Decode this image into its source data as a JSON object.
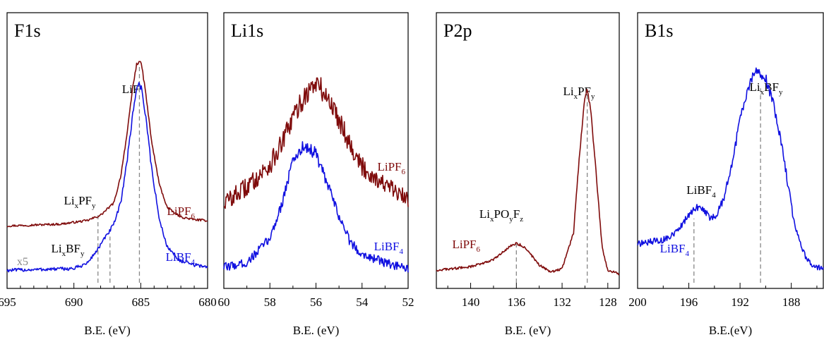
{
  "colors": {
    "lipf6": "#7f0b0b",
    "libf4": "#1010e0",
    "ref": "#888888",
    "axis": "#000000"
  },
  "chart_data": [
    {
      "type": "line",
      "title": "F1s",
      "xlabel": "B.E. (eV)",
      "xlim": [
        695,
        680
      ],
      "xticks": [
        "695",
        "690",
        "685",
        "680"
      ],
      "reversed_x": true,
      "scale_note": "x5",
      "series": [
        {
          "name": "LiPF6",
          "name_main": "LiPF",
          "name_sub": "6",
          "color": "#7f0b0b",
          "noise": 0.15,
          "x": [
            695,
            691,
            689,
            688,
            687,
            686.5,
            686,
            685.6,
            685.3,
            685.1,
            684.9,
            684.6,
            684.2,
            683.6,
            683,
            682,
            681,
            680
          ],
          "y": [
            0.32,
            0.33,
            0.35,
            0.38,
            0.45,
            0.6,
            0.85,
            1.1,
            1.23,
            1.25,
            1.21,
            1.05,
            0.8,
            0.55,
            0.42,
            0.37,
            0.355,
            0.35
          ]
        },
        {
          "name": "LiBF4",
          "name_main": "LiBF",
          "name_sub": "4",
          "color": "#1010e0",
          "noise": 0.3,
          "x": [
            695,
            690,
            689,
            688.3,
            687.6,
            687,
            686.5,
            686,
            685.6,
            685.3,
            685.1,
            684.9,
            684.6,
            684.2,
            683.6,
            683,
            682,
            681,
            680
          ],
          "y": [
            0.07,
            0.08,
            0.11,
            0.18,
            0.26,
            0.33,
            0.45,
            0.7,
            0.95,
            1.1,
            1.12,
            1.08,
            0.92,
            0.65,
            0.35,
            0.2,
            0.12,
            0.1,
            0.09
          ]
        }
      ],
      "annotations": [
        {
          "main": "LiF",
          "x": 685.1,
          "from": 0.0,
          "to": 1.22
        },
        {
          "main": "Li",
          "sub1": "x",
          "mid": "PF",
          "sub2": "y",
          "x": 688.2,
          "from": 0.0,
          "to": 0.38
        },
        {
          "main": "Li",
          "sub1": "x",
          "mid": "BF",
          "sub2": "y",
          "x": 687.3,
          "from": 0.0,
          "to": 0.26
        }
      ]
    },
    {
      "type": "line",
      "title": "Li1s",
      "xlabel": "B.E. (eV)",
      "xlim": [
        60,
        52
      ],
      "xticks": [
        "60",
        "58",
        "56",
        "54",
        "52"
      ],
      "reversed_x": true,
      "series": [
        {
          "name": "LiPF6",
          "name_main": "LiPF",
          "name_sub": "6",
          "color": "#7f0b0b",
          "noise": 1.0,
          "x": [
            60,
            59,
            58,
            57.5,
            57,
            56.5,
            56,
            55.5,
            55,
            54.5,
            54,
            53,
            52
          ],
          "y": [
            0.36,
            0.43,
            0.53,
            0.62,
            0.74,
            0.84,
            0.9,
            0.83,
            0.74,
            0.62,
            0.52,
            0.44,
            0.37
          ]
        },
        {
          "name": "LiBF4",
          "name_main": "LiBF",
          "name_sub": "4",
          "color": "#1010e0",
          "noise": 0.6,
          "x": [
            60,
            59,
            58,
            57.5,
            57,
            56.5,
            56,
            55.5,
            55,
            54.5,
            54,
            53,
            52
          ],
          "y": [
            0.07,
            0.09,
            0.2,
            0.35,
            0.55,
            0.62,
            0.58,
            0.44,
            0.3,
            0.18,
            0.13,
            0.09,
            0.06
          ]
        }
      ],
      "annotations": []
    },
    {
      "type": "line",
      "title": "P2p",
      "xlabel": "B.E. (eV)",
      "xlim": [
        143,
        127
      ],
      "xticks": [
        "140",
        "136",
        "132",
        "128"
      ],
      "reversed_x": true,
      "series": [
        {
          "name": "LiPF6",
          "name_main": "LiPF",
          "name_sub": "6",
          "color": "#7f0b0b",
          "noise": 0.2,
          "x": [
            143,
            140,
            138,
            137,
            136.5,
            136,
            135.5,
            135,
            134,
            133,
            132,
            131,
            130.5,
            130,
            129.8,
            129.5,
            129,
            128.5,
            128,
            127
          ],
          "y": [
            0.07,
            0.09,
            0.13,
            0.18,
            0.21,
            0.22,
            0.21,
            0.18,
            0.1,
            0.06,
            0.08,
            0.28,
            0.7,
            1.05,
            1.08,
            0.98,
            0.6,
            0.2,
            0.07,
            0.05
          ]
        }
      ],
      "annotations": [
        {
          "main": "Li",
          "sub1": "x",
          "mid": "PF",
          "sub2": "y",
          "x": 129.8,
          "from": 0.0,
          "to": 1.06
        },
        {
          "main": "Li",
          "sub1": "x",
          "mid": "PO",
          "sub2": "y",
          "end": "F",
          "sub3": "z",
          "x": 136,
          "from": 0.0,
          "to": 0.22
        }
      ]
    },
    {
      "type": "line",
      "title": "B1s",
      "xlabel": "B.E.(eV)",
      "xlim": [
        200,
        185.5
      ],
      "xticks": [
        "200",
        "196",
        "192",
        "188"
      ],
      "reversed_x": true,
      "series": [
        {
          "name": "LiBF4",
          "name_main": "LiBF",
          "name_sub": "4",
          "color": "#1010e0",
          "noise": 0.45,
          "x": [
            200,
            198,
            197,
            196.3,
            195.8,
            195.3,
            194.8,
            194.3,
            193.8,
            193.2,
            192.6,
            192,
            191.4,
            190.9,
            190.5,
            190,
            189.5,
            189,
            188.6,
            188.2,
            187.8,
            187.3,
            186.8,
            186.3,
            185.5
          ],
          "y": [
            0.2,
            0.22,
            0.26,
            0.32,
            0.36,
            0.39,
            0.37,
            0.33,
            0.35,
            0.45,
            0.62,
            0.84,
            1.0,
            1.07,
            1.09,
            1.05,
            0.95,
            0.8,
            0.65,
            0.48,
            0.32,
            0.2,
            0.12,
            0.09,
            0.07
          ]
        }
      ],
      "annotations": [
        {
          "main": "Li",
          "sub1": "x",
          "mid": "BF",
          "sub2": "y",
          "x": 190.4,
          "from": 0.0,
          "to": 1.0
        },
        {
          "main": "LiBF",
          "sub1": "4",
          "x": 195.6,
          "from": 0.0,
          "to": 0.33
        }
      ]
    }
  ]
}
